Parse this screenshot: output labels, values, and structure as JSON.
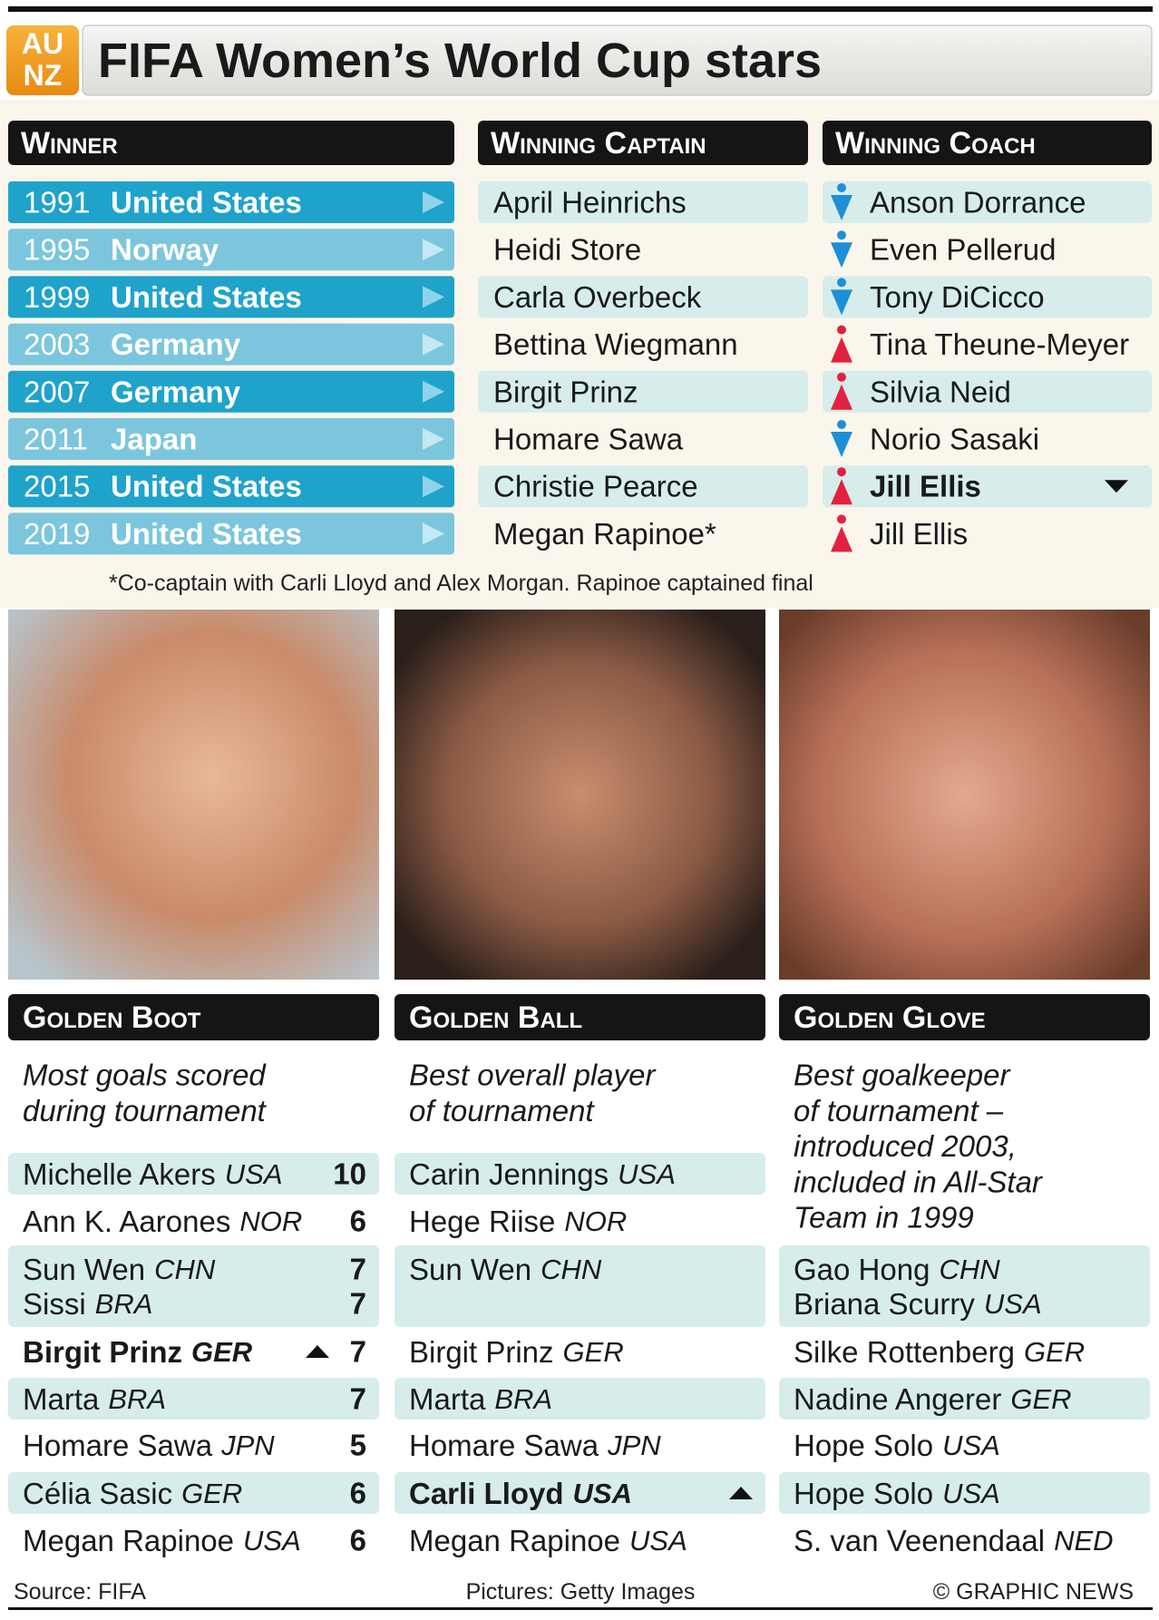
{
  "header": {
    "logo_top": "AU",
    "logo_bottom": "NZ",
    "title": "FIFA Women’s World Cup stars"
  },
  "winners": {
    "headers": [
      "Winner",
      "Winning Captain",
      "Winning Coach"
    ],
    "rows": [
      {
        "year": 1991,
        "country": "United States",
        "captain": "April Heinrichs",
        "coach": "Anson Dorrance"
      },
      {
        "year": 1995,
        "country": "Norway",
        "captain": "Heidi Store",
        "coach": "Even Pellerud"
      },
      {
        "year": 1999,
        "country": "United States",
        "captain": "Carla Overbeck",
        "coach": "Tony DiCicco"
      },
      {
        "year": 2003,
        "country": "Germany",
        "captain": "Bettina Wiegmann",
        "coach": "Tina Theune-Meyer"
      },
      {
        "year": 2007,
        "country": "Germany",
        "captain": "Birgit Prinz",
        "coach": "Silvia Neid"
      },
      {
        "year": 2011,
        "country": "Japan",
        "captain": "Homare Sawa",
        "coach": "Norio Sasaki"
      },
      {
        "year": 2015,
        "country": "United States",
        "captain": "Christie Pearce",
        "coach": "Jill Ellis"
      },
      {
        "year": 2019,
        "country": "United States",
        "captain": "Megan Rapinoe*",
        "coach": "Jill Ellis"
      }
    ],
    "footnote": "*Co-captain with Carli Lloyd and Alex Morgan. Rapinoe captained final"
  },
  "awards": [
    {
      "title": "Golden Boot",
      "description": [
        "Most goals scored",
        "during tournament"
      ],
      "rows": [
        [
          {
            "name": "Michelle Akers",
            "country": "USA",
            "goals": 10
          }
        ],
        [
          {
            "name": "Ann K. Aarones",
            "country": "NOR",
            "goals": 6
          }
        ],
        [
          {
            "name": "Sun Wen",
            "country": "CHN",
            "goals": 7
          },
          {
            "name": "Sissi",
            "country": "BRA",
            "goals": 7
          }
        ],
        [
          {
            "name": "Birgit Prinz",
            "country": "GER",
            "goals": 7
          }
        ],
        [
          {
            "name": "Marta",
            "country": "BRA",
            "goals": 7
          }
        ],
        [
          {
            "name": "Homare Sawa",
            "country": "JPN",
            "goals": 5
          }
        ],
        [
          {
            "name": "Célia Sasic",
            "country": "GER",
            "goals": 6
          }
        ],
        [
          {
            "name": "Megan Rapinoe",
            "country": "USA",
            "goals": 6
          }
        ]
      ]
    },
    {
      "title": "Golden Ball",
      "description": [
        "Best overall player",
        "of tournament"
      ],
      "rows": [
        [
          {
            "name": "Carin Jennings",
            "country": "USA"
          }
        ],
        [
          {
            "name": "Hege Riise",
            "country": "NOR"
          }
        ],
        [
          {
            "name": "Sun Wen",
            "country": "CHN"
          }
        ],
        [
          {
            "name": "Birgit Prinz",
            "country": "GER"
          }
        ],
        [
          {
            "name": "Marta",
            "country": "BRA"
          }
        ],
        [
          {
            "name": "Homare Sawa",
            "country": "JPN"
          }
        ],
        [
          {
            "name": "Carli Lloyd",
            "country": "USA"
          }
        ],
        [
          {
            "name": "Megan Rapinoe",
            "country": "USA"
          }
        ]
      ]
    },
    {
      "title": "Golden Glove",
      "description": [
        "Best goalkeeper",
        "of tournament –",
        "introduced 2003,",
        "included in All-Star",
        "Team in 1999"
      ],
      "rows": [
        [
          {
            "name": "Gao Hong",
            "country": "CHN"
          },
          {
            "name": "Briana Scurry",
            "country": "USA"
          }
        ],
        [
          {
            "name": "Silke Rottenberg",
            "country": "GER"
          }
        ],
        [
          {
            "name": "Nadine Angerer",
            "country": "GER"
          }
        ],
        [
          {
            "name": "Hope Solo",
            "country": "USA"
          }
        ],
        [
          {
            "name": "Hope Solo",
            "country": "USA"
          }
        ],
        [
          {
            "name": "S. van Veenendaal",
            "country": "NED"
          }
        ]
      ]
    }
  ],
  "footer": {
    "source": "Source: FIFA",
    "pictures": "Pictures: Getty Images",
    "credit": "© GRAPHIC NEWS"
  }
}
